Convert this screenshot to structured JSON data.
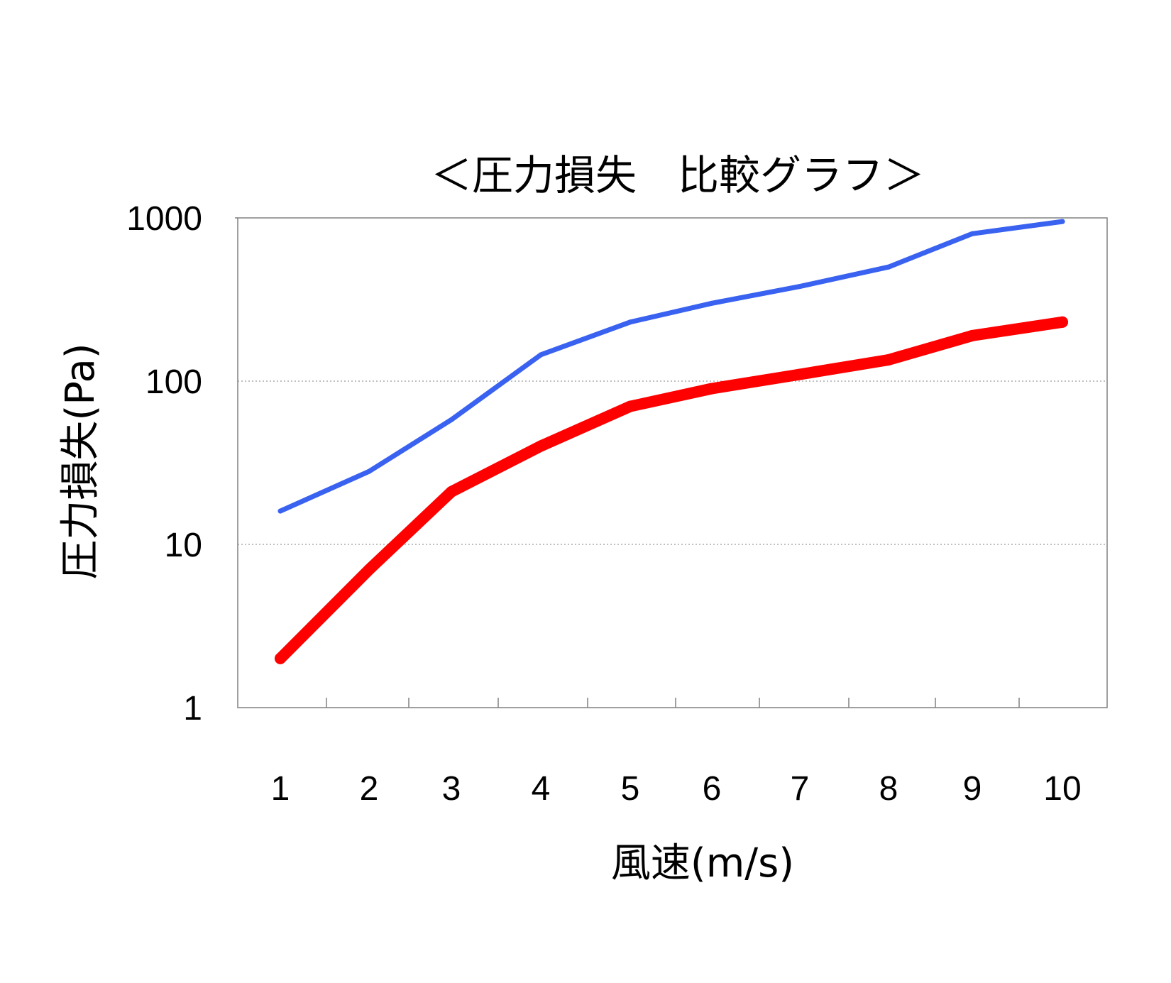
{
  "chart_data": {
    "type": "line",
    "title": "＜圧力損失　比較グラフ＞",
    "xlabel": "風速(m/s)",
    "ylabel": "圧力損失(Pa)",
    "y_scale": "log",
    "ylim": [
      1,
      1000
    ],
    "y_ticks": [
      "1",
      "10",
      "100",
      "1000"
    ],
    "categories": [
      "1",
      "2",
      "3",
      "4",
      "5",
      "6",
      "7",
      "8",
      "9",
      "10"
    ],
    "grid": "horizontal dotted at 10 and 100",
    "legend": "none",
    "series": [
      {
        "color": "#3a62f0",
        "values": [
          16,
          28,
          58,
          145,
          230,
          300,
          380,
          500,
          800,
          950
        ]
      },
      {
        "color": "#ff0000",
        "values": [
          2,
          7,
          21,
          40,
          70,
          90,
          110,
          135,
          190,
          230
        ]
      }
    ]
  }
}
